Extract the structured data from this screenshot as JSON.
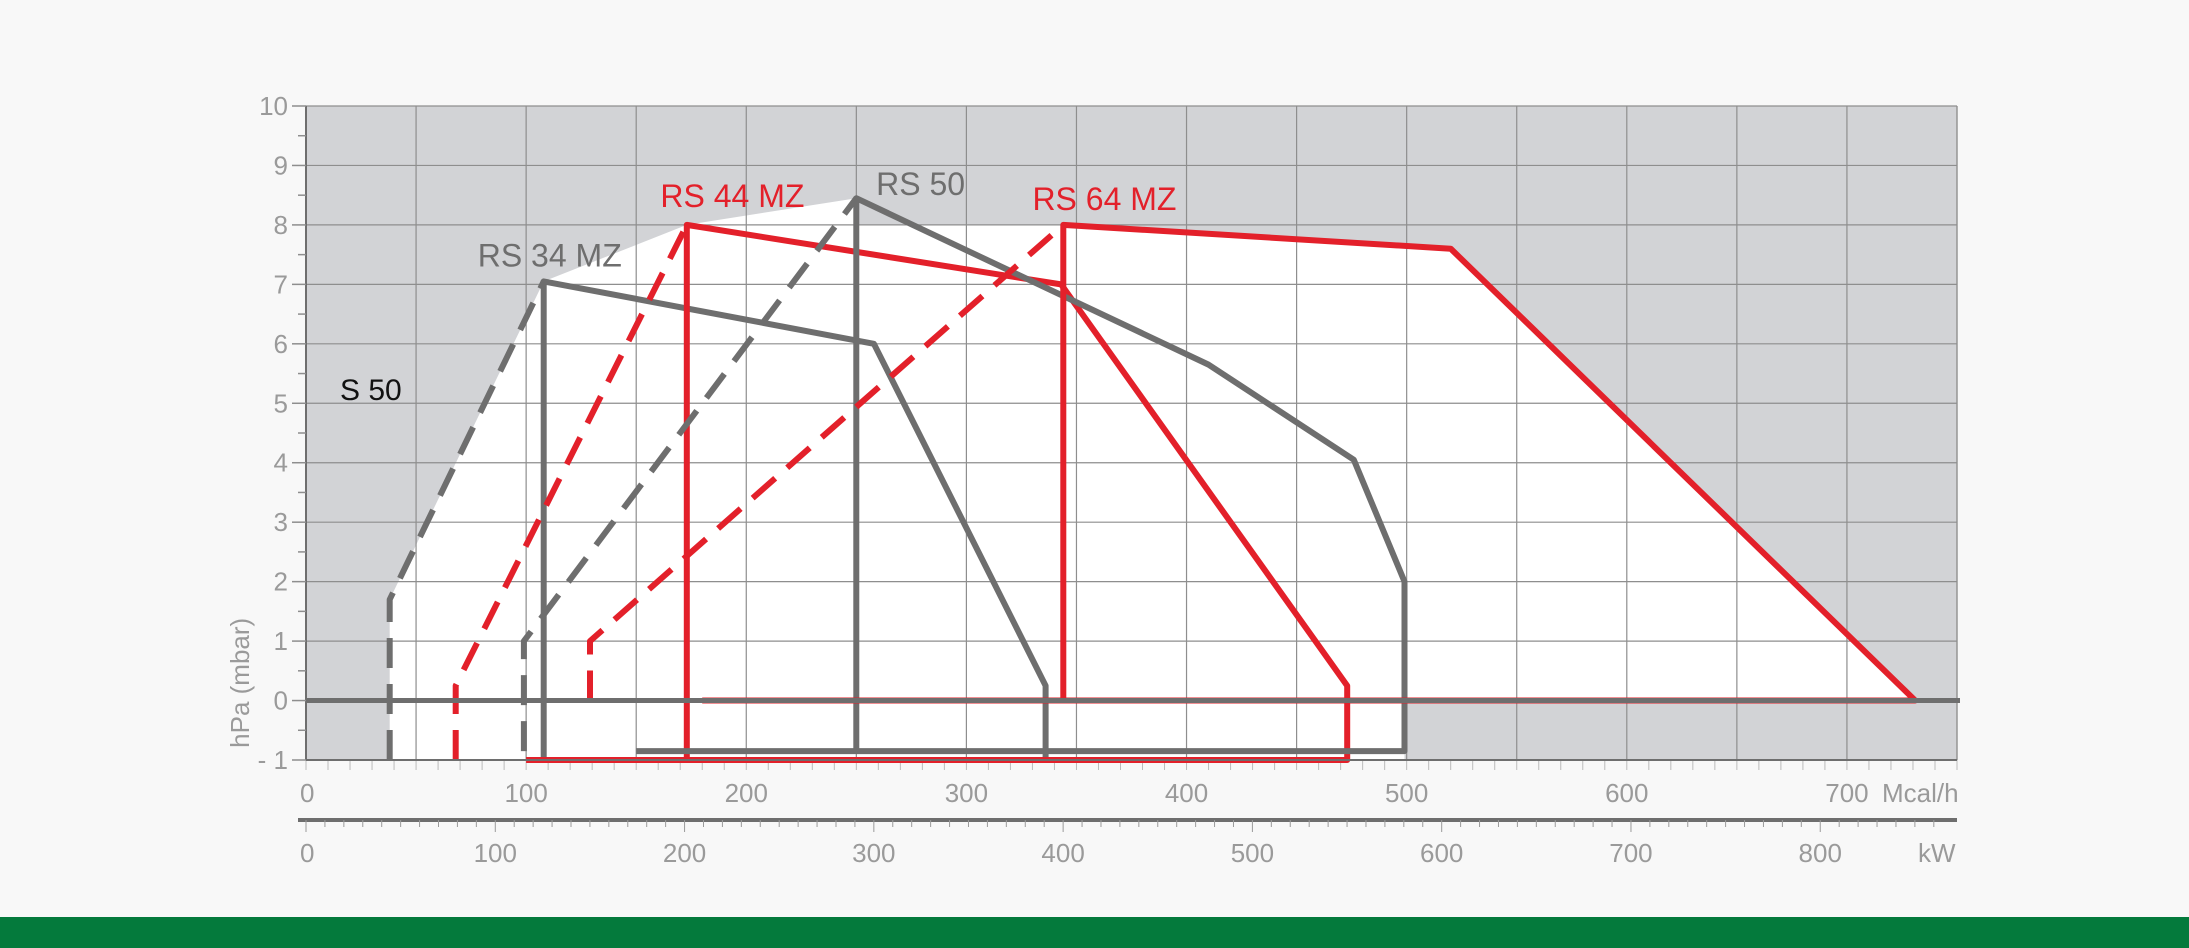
{
  "chart_data": {
    "type": "line",
    "title": "",
    "ylabel": "hPa (mbar)",
    "x_axis_primary": {
      "unit": "Mcal/h",
      "range": [
        0,
        750
      ],
      "ticks": [
        0,
        100,
        200,
        300,
        400,
        500,
        600,
        700
      ],
      "tick_labels": [
        "0",
        "100",
        "200",
        "300",
        "400",
        "500",
        "600",
        "700"
      ]
    },
    "x_axis_secondary": {
      "unit": "kW",
      "ticks": [
        0,
        100,
        200,
        300,
        400,
        500,
        600,
        700,
        800
      ],
      "tick_labels": [
        "0",
        "100",
        "200",
        "300",
        "400",
        "500",
        "600",
        "700",
        "800"
      ]
    },
    "y_axis": {
      "range": [
        -1,
        10
      ],
      "ticks": [
        -1,
        0,
        1,
        2,
        3,
        4,
        5,
        6,
        7,
        8,
        9,
        10
      ],
      "tick_labels": [
        "- 1",
        "0",
        "1",
        "2",
        "3",
        "4",
        "5",
        "6",
        "7",
        "8",
        "9",
        "10"
      ]
    },
    "grid": true,
    "annotation": "S 50",
    "series": [
      {
        "name": "RS 34 MZ",
        "color": "#6e6e6e",
        "label_at": [
          78,
          7.3
        ],
        "dashed": [
          [
            38,
            -1
          ],
          [
            38,
            1.7
          ],
          [
            108,
            7.05
          ]
        ],
        "solid": [
          [
            108,
            -1
          ],
          [
            108,
            7.05
          ],
          [
            258,
            6.0
          ],
          [
            336,
            0.25
          ],
          [
            336,
            -1
          ]
        ]
      },
      {
        "name": "RS 44 MZ",
        "color": "#e3202a",
        "label_at": [
          161,
          8.3
        ],
        "dashed": [
          [
            68,
            -1
          ],
          [
            68,
            0.25
          ],
          [
            173,
            8.0
          ]
        ],
        "solid": [
          [
            173,
            -1
          ],
          [
            173,
            8.0
          ],
          [
            343,
            7.0
          ],
          [
            473,
            0.25
          ],
          [
            473,
            -1
          ],
          [
            100,
            -1
          ]
        ]
      },
      {
        "name": "RS 50",
        "color": "#6e6e6e",
        "label_at": [
          259,
          8.5
        ],
        "dashed": [
          [
            99,
            -0.85
          ],
          [
            99,
            1.0
          ],
          [
            250,
            8.45
          ]
        ],
        "solid": [
          [
            250,
            -0.85
          ],
          [
            250,
            8.45
          ],
          [
            410,
            5.65
          ],
          [
            476,
            4.05
          ],
          [
            499,
            2.0
          ],
          [
            499,
            -0.85
          ],
          [
            150,
            -0.85
          ]
        ]
      },
      {
        "name": "RS 64 MZ",
        "color": "#e3202a",
        "label_at": [
          330,
          8.25
        ],
        "dashed": [
          [
            129,
            0
          ],
          [
            129,
            1.0
          ],
          [
            344,
            8.0
          ]
        ],
        "solid": [
          [
            344,
            0
          ],
          [
            344,
            8.0
          ],
          [
            520,
            7.6
          ],
          [
            731,
            0
          ],
          [
            180,
            0
          ]
        ]
      }
    ]
  }
}
